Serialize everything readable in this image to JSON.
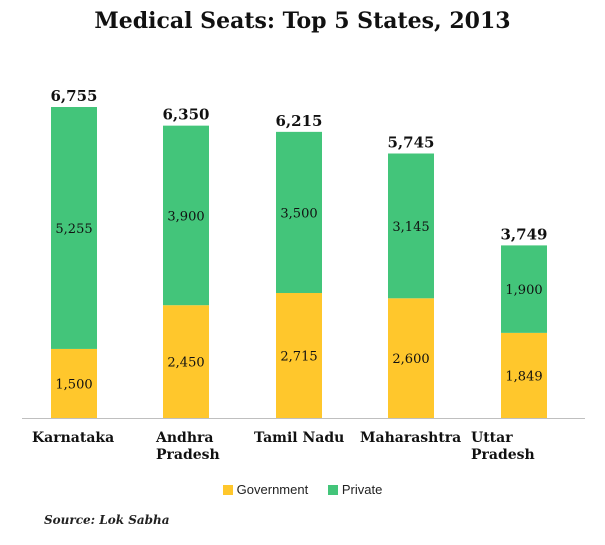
{
  "chart_data": {
    "type": "bar",
    "stacked": true,
    "title": "Medical Seats: Top 5 States, 2013",
    "categories": [
      "Karnataka",
      "Andhra Pradesh",
      "Tamil Nadu",
      "Maharashtra",
      "Uttar Pradesh"
    ],
    "category_labels": [
      [
        "Karnataka"
      ],
      [
        "Andhra",
        "Pradesh"
      ],
      [
        "Tamil Nadu"
      ],
      [
        "Maharashtra"
      ],
      [
        "Uttar Pradesh"
      ]
    ],
    "series": [
      {
        "name": "Government",
        "color": "#FFC72C",
        "values": [
          1500,
          2450,
          2715,
          2600,
          1849
        ],
        "labels": [
          "1,500",
          "2,450",
          "2,715",
          "2,600",
          "1,849"
        ]
      },
      {
        "name": "Private",
        "color": "#43C57A",
        "values": [
          5255,
          3900,
          3500,
          3145,
          1900
        ],
        "labels": [
          "5,255",
          "3,900",
          "3,500",
          "3,145",
          "1,900"
        ]
      }
    ],
    "totals": [
      6755,
      6350,
      6215,
      5745,
      3749
    ],
    "total_labels": [
      "6,755",
      "6,350",
      "6,215",
      "5,745",
      "3,749"
    ],
    "ylim": [
      0,
      7000
    ],
    "grid": false,
    "legend_position": "bottom",
    "xlabel": "",
    "ylabel": ""
  },
  "source": "Source: Lok Sabha"
}
